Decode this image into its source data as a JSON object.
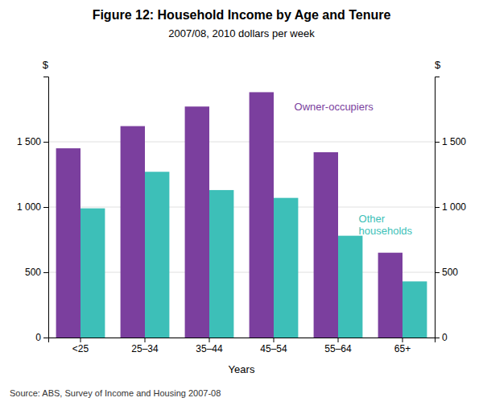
{
  "chart_data": {
    "type": "bar",
    "title": "Figure 12: Household Income by Age and Tenure",
    "subtitle": "2007/08, 2010 dollars per week",
    "xlabel": "Years",
    "ylabel": "$",
    "y2label": "$",
    "source": "Source:  ABS, Survey of Income and Housing 2007-08",
    "categories": [
      "<25",
      "25–34",
      "35–44",
      "45–54",
      "55–64",
      "65+"
    ],
    "series": [
      {
        "color": "#7B3F9E",
        "values": [
          1450,
          1620,
          1770,
          1880,
          1420,
          650
        ]
      },
      {
        "color": "#3DBFB8",
        "values": [
          990,
          1270,
          1130,
          1070,
          780,
          430
        ]
      }
    ],
    "annotations": [
      "Owner-occupiers",
      "Other\nhouseholds"
    ],
    "ylim": [
      0,
      2000
    ],
    "yticks": [
      0,
      500,
      {
        "value": 1000,
        "label": "1 000"
      },
      {
        "value": 1500,
        "label": "1 500"
      }
    ],
    "y2lim": [
      0,
      2000
    ],
    "y2ticks": [
      0,
      500,
      {
        "value": 1000,
        "label": "1 000"
      },
      {
        "value": 1500,
        "label": "1 500"
      }
    ],
    "grid": true
  }
}
